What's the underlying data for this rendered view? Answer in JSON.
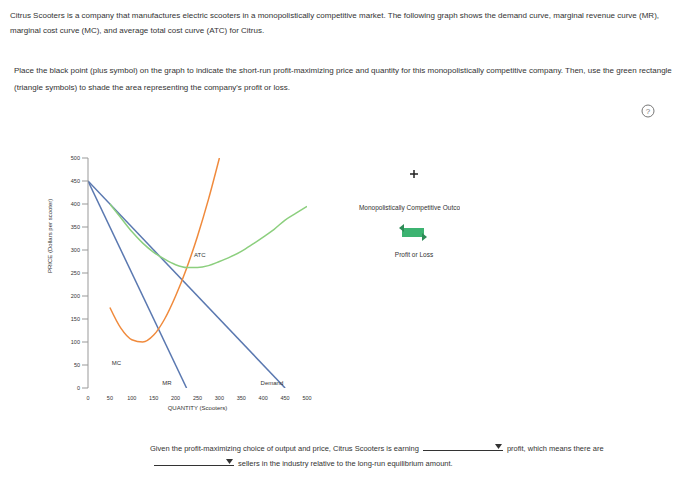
{
  "header": "Citrus Scooters is a company that manufactures electric scooters in a monopolistically competitive market. The following graph shows the demand curve, marginal revenue curve (MR), marginal cost curve (MC), and average total cost curve (ATC) for Citrus.",
  "instructions": "Place the black point (plus symbol) on the graph to indicate the short-run profit-maximizing price and quantity for this monopolistically competitive company. Then, use the green rectangle (triangle symbols) to shade the area representing the company's profit or loss.",
  "help": "?",
  "palette": [
    "Monopolistically Competitive Outcome",
    "Profit or Loss"
  ],
  "question": {
    "part1": "Given the profit-maximizing choice of output and price, Citrus Scooters is earning",
    "part2": "profit, which means there are",
    "part3": "sellers in the industry relative to the long-run equilibrium amount."
  },
  "chart_data": {
    "type": "line",
    "x_label": "QUANTITY (Scooters)",
    "y_label": "PRICE (Dollars per scooter)",
    "xlim": [
      0,
      500
    ],
    "ylim": [
      0,
      500
    ],
    "xticks": [
      0,
      50,
      100,
      150,
      200,
      250,
      300,
      350,
      400,
      450,
      500
    ],
    "yticks": [
      0,
      50,
      100,
      150,
      200,
      250,
      300,
      350,
      400,
      450,
      500
    ],
    "grid": false,
    "series": [
      {
        "name": "Demand",
        "color": "#5a78b0",
        "x": [
          0,
          450
        ],
        "values": [
          450,
          0
        ]
      },
      {
        "name": "MR",
        "color": "#5a78b0",
        "x": [
          0,
          225
        ],
        "values": [
          450,
          0
        ]
      },
      {
        "name": "MC",
        "color": "#f08a3c",
        "x": [
          50,
          75,
          100,
          125,
          150,
          175,
          200,
          225,
          250,
          275,
          300
        ],
        "values": [
          175,
          130,
          105,
          100,
          115,
          150,
          200,
          260,
          330,
          410,
          500
        ]
      },
      {
        "name": "ATC",
        "color": "#8ccf7e",
        "x": [
          50,
          75,
          100,
          125,
          150,
          175,
          200,
          225,
          250,
          275,
          300,
          325,
          350,
          375,
          400,
          425,
          450,
          475,
          500
        ],
        "values": [
          400,
          370,
          340,
          315,
          295,
          280,
          268,
          262,
          262,
          266,
          275,
          285,
          297,
          312,
          328,
          345,
          365,
          380,
          395
        ]
      }
    ],
    "annotations": [
      {
        "text": "MC",
        "x": 65,
        "y": 55
      },
      {
        "text": "ATC",
        "x": 255,
        "y": 290
      },
      {
        "text": "MR",
        "x": 180,
        "y": 12
      },
      {
        "text": "Demand",
        "x": 420,
        "y": 12
      }
    ]
  }
}
